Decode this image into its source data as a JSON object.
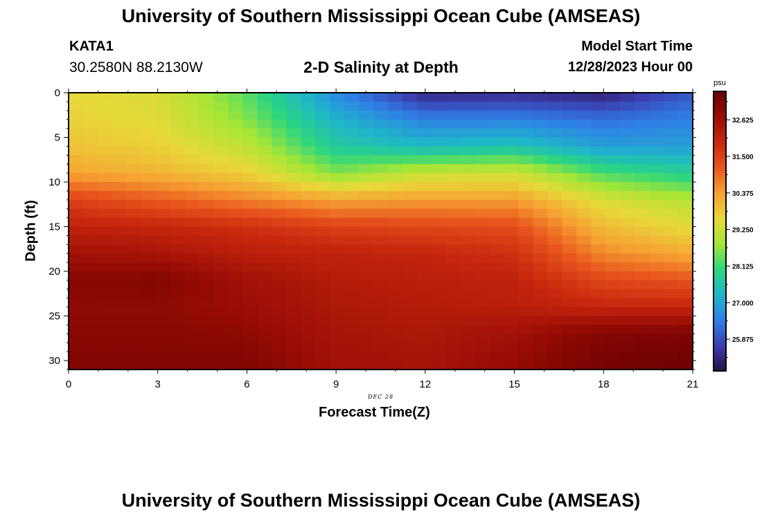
{
  "page": {
    "title_top": "University of Southern Mississippi Ocean Cube (AMSEAS)",
    "title_bottom": "University of Southern Mississippi Ocean Cube (AMSEAS)",
    "station": "KATA1",
    "coords": "30.2580N  88.2130W",
    "plot_title": "2-D Salinity at Depth",
    "model_start_label": "Model Start Time",
    "model_start_value": "12/28/2023 Hour 00",
    "date_label": "DEC 28"
  },
  "colors": {
    "palette": [
      "#2a0f45",
      "#3b3fb0",
      "#2f7fe6",
      "#1fb6c9",
      "#2cd67e",
      "#a4e636",
      "#e8d93a",
      "#f6a033",
      "#e8561e",
      "#c8280e",
      "#9a0d05",
      "#6a0000"
    ]
  },
  "chart_data": {
    "type": "heatmap",
    "title": "2-D Salinity at Depth",
    "xlabel": "Forecast Time(Z)",
    "ylabel": "Depth (ft)",
    "xlim": [
      0,
      21
    ],
    "ylim": [
      0,
      31
    ],
    "x_ticks": [
      "0",
      "3",
      "6",
      "9",
      "12",
      "15",
      "18",
      "21"
    ],
    "y_ticks": [
      "0",
      "5",
      "10",
      "15",
      "20",
      "25",
      "30"
    ],
    "colorbar": {
      "unit": "psu",
      "range": [
        24.9,
        33.5
      ],
      "tick_labels": [
        "32.625",
        "31.500",
        "30.375",
        "29.250",
        "28.125",
        "27.000",
        "25.875"
      ]
    },
    "grid": {
      "x": [
        0,
        3,
        6,
        9,
        12,
        15,
        18,
        21
      ],
      "depth": [
        0,
        3,
        6,
        9,
        12,
        15,
        18,
        21,
        24,
        27,
        30
      ],
      "salinity": [
        [
          29.6,
          29.4,
          28.3,
          26.6,
          25.3,
          25.4,
          25.2,
          26.0
        ],
        [
          29.7,
          29.5,
          28.6,
          27.2,
          26.5,
          26.5,
          26.3,
          26.5
        ],
        [
          29.9,
          29.7,
          29.1,
          27.7,
          27.3,
          27.5,
          26.9,
          26.9
        ],
        [
          30.3,
          30.1,
          29.7,
          28.6,
          29.2,
          29.3,
          28.2,
          27.8
        ],
        [
          31.5,
          31.1,
          30.7,
          30.3,
          30.4,
          30.4,
          29.4,
          29.0
        ],
        [
          32.1,
          32.0,
          31.8,
          31.5,
          31.4,
          31.3,
          30.0,
          29.5
        ],
        [
          32.6,
          32.5,
          32.2,
          32.1,
          32.0,
          31.8,
          30.6,
          30.2
        ],
        [
          33.0,
          33.1,
          32.6,
          32.3,
          32.2,
          32.1,
          31.4,
          31.2
        ],
        [
          32.9,
          32.9,
          32.7,
          32.4,
          32.3,
          32.2,
          32.0,
          32.0
        ],
        [
          33.0,
          33.0,
          32.9,
          32.5,
          32.4,
          32.6,
          33.1,
          33.2
        ],
        [
          33.1,
          33.1,
          33.1,
          32.6,
          32.5,
          32.8,
          33.3,
          33.4
        ]
      ]
    }
  }
}
